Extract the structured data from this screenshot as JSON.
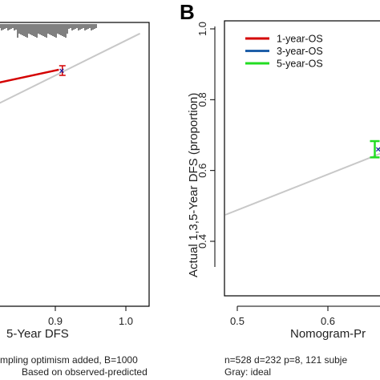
{
  "chart_data": [
    {
      "panel": "",
      "type": "line",
      "xlabel": "5-Year DFS",
      "ylabel": "",
      "xlim": [
        0.72,
        1.02
      ],
      "ylim": [
        0.8,
        1.02
      ],
      "x_ticks": [
        "0.9",
        "1.0"
      ],
      "x_tick_values": [
        0.9,
        1.0
      ],
      "series": [
        {
          "color": "#d40000",
          "x": [
            0.72,
            0.905
          ],
          "y": [
            0.837,
            0.917
          ]
        }
      ],
      "ideal_line": {
        "color": "#c8c8c8",
        "x": [
          0.72,
          1.02
        ],
        "y": [
          0.81,
          1.0
        ]
      },
      "points": [
        {
          "x": 0.91,
          "y": 0.915,
          "ci_low": 0.905,
          "ci_high": 0.925,
          "color": "#d40000",
          "marker_color": "#1a1aa0"
        }
      ],
      "notes": [
        "mpling optimism added, B=1000",
        "Based on observed-predicted"
      ]
    },
    {
      "panel": "B",
      "type": "line",
      "xlabel": "Nomogram-Pr",
      "ylabel": "Actual 1,3,5-Year DFS (proportion)",
      "xlim": [
        0.48,
        0.7
      ],
      "ylim": [
        0.33,
        1.01
      ],
      "x_ticks": [
        "0.5",
        "0.6"
      ],
      "x_tick_values": [
        0.5,
        0.6
      ],
      "y_ticks": [
        "0.4",
        "0.6",
        "0.8",
        "1.0"
      ],
      "y_tick_values": [
        0.4,
        0.6,
        0.8,
        1.0
      ],
      "legend": {
        "position": "top-left",
        "entries": [
          {
            "label": "1-year-OS",
            "color": "#d40000"
          },
          {
            "label": "3-year-OS",
            "color": "#1f5fa8"
          },
          {
            "label": "5-year-OS",
            "color": "#22dd22"
          }
        ]
      },
      "series": [
        {
          "name": "5-year-OS",
          "color": "#22dd22",
          "x": [
            0.65,
            0.7
          ],
          "y": [
            0.665,
            0.7
          ]
        }
      ],
      "ideal_line": {
        "color": "#c8c8c8",
        "x": [
          0.48,
          0.7
        ],
        "y": [
          0.48,
          0.7
        ]
      },
      "points": [
        {
          "x": 0.65,
          "y": 0.66,
          "ci_low": 0.637,
          "ci_high": 0.683,
          "color": "#22dd22",
          "marker_color": "#1a1aa0"
        }
      ],
      "notes": [
        "n=528 d=232 p=8, 121 subje",
        "Gray: ideal"
      ]
    }
  ]
}
